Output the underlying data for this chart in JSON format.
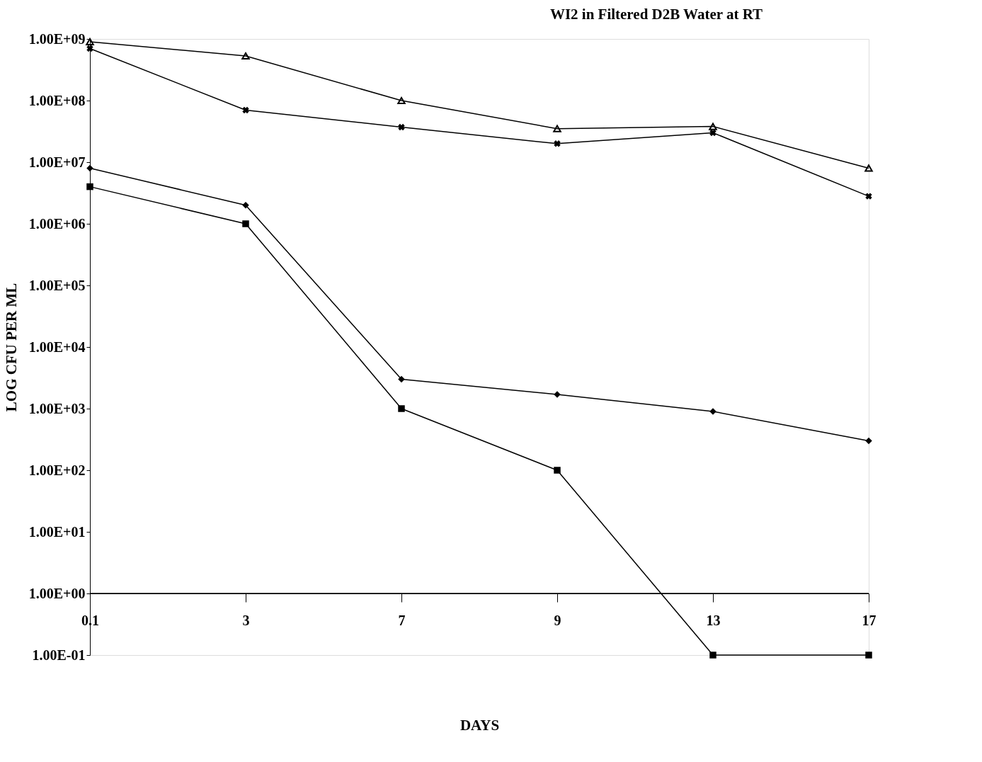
{
  "chart_data": {
    "type": "line",
    "title": "WI2 in Filtered D2B Water at RT",
    "xlabel": "DAYS",
    "ylabel": "LOG CFU PER ML",
    "categories": [
      "0.1",
      "3",
      "7",
      "9",
      "13",
      "17"
    ],
    "series": [
      {
        "color": "#000000",
        "marker": "triangle",
        "values": [
          900000000,
          530000000,
          100000000,
          35000000,
          38000000,
          8000000
        ]
      },
      {
        "color": "#000000",
        "marker": "cross",
        "values": [
          700000000,
          70000000,
          37000000,
          20000000,
          30000000,
          2800000
        ]
      },
      {
        "color": "#000000",
        "marker": "diamond",
        "values": [
          8000000,
          2000000,
          3000,
          1700,
          900,
          300
        ]
      },
      {
        "color": "#000000",
        "marker": "square",
        "values": [
          4000000,
          1000000,
          1000,
          100,
          0.1,
          0.1
        ]
      }
    ],
    "log": "y",
    "ylim": [
      0.1,
      1000000000
    ],
    "yticks": [
      {
        "value": 0.1,
        "label": "1.00E-01"
      },
      {
        "value": 1,
        "label": "1.00E+00"
      },
      {
        "value": 10,
        "label": "1.00E+01"
      },
      {
        "value": 100,
        "label": "1.00E+02"
      },
      {
        "value": 1000,
        "label": "1.00E+03"
      },
      {
        "value": 10000,
        "label": "1.00E+04"
      },
      {
        "value": 100000,
        "label": "1.00E+05"
      },
      {
        "value": 1000000,
        "label": "1.00E+06"
      },
      {
        "value": 10000000,
        "label": "1.00E+07"
      },
      {
        "value": 100000000,
        "label": "1.00E+08"
      },
      {
        "value": 1000000000,
        "label": "1.00E+09"
      }
    ],
    "ref_lines": [
      {
        "axis": "y",
        "value": 1
      }
    ],
    "grid": false,
    "legend": false,
    "line_style": "solid"
  }
}
